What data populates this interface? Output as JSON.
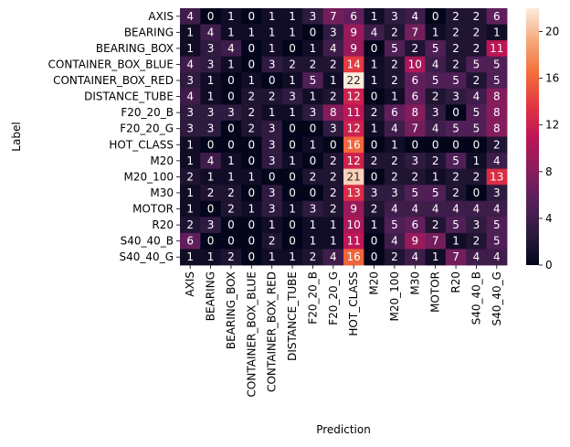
{
  "chart_data": {
    "type": "heatmap",
    "title": "",
    "xlabel": "Prediction",
    "ylabel": "Label",
    "x_categories": [
      "AXIS",
      "BEARING",
      "BEARING_BOX",
      "CONTAINER_BOX_BLUE",
      "CONTAINER_BOX_RED",
      "DISTANCE_TUBE",
      "F20_20_B",
      "F20_20_G",
      "HOT_CLASS",
      "M20",
      "M20_100",
      "M30",
      "MOTOR",
      "R20",
      "S40_40_B",
      "S40_40_G"
    ],
    "y_categories": [
      "AXIS",
      "BEARING",
      "BEARING_BOX",
      "CONTAINER_BOX_BLUE",
      "CONTAINER_BOX_RED",
      "DISTANCE_TUBE",
      "F20_20_B",
      "F20_20_G",
      "HOT_CLASS",
      "M20",
      "M20_100",
      "M30",
      "MOTOR",
      "R20",
      "S40_40_B",
      "S40_40_G"
    ],
    "values": [
      [
        4,
        0,
        1,
        0,
        1,
        1,
        3,
        7,
        6,
        1,
        3,
        4,
        0,
        2,
        2,
        6
      ],
      [
        1,
        4,
        1,
        1,
        1,
        1,
        0,
        3,
        9,
        4,
        2,
        7,
        1,
        2,
        2,
        1
      ],
      [
        1,
        3,
        4,
        0,
        1,
        0,
        1,
        4,
        9,
        0,
        5,
        2,
        5,
        2,
        2,
        11
      ],
      [
        4,
        3,
        1,
        0,
        3,
        2,
        2,
        2,
        14,
        1,
        2,
        10,
        4,
        2,
        5,
        5
      ],
      [
        3,
        1,
        0,
        1,
        0,
        1,
        5,
        1,
        22,
        1,
        2,
        6,
        5,
        5,
        2,
        5
      ],
      [
        4,
        1,
        0,
        2,
        2,
        3,
        1,
        2,
        12,
        0,
        1,
        6,
        2,
        3,
        4,
        8
      ],
      [
        3,
        3,
        3,
        2,
        1,
        1,
        3,
        8,
        11,
        2,
        6,
        8,
        3,
        0,
        5,
        8
      ],
      [
        3,
        3,
        0,
        2,
        3,
        0,
        0,
        3,
        12,
        1,
        4,
        7,
        4,
        5,
        5,
        8
      ],
      [
        1,
        0,
        0,
        0,
        3,
        0,
        1,
        0,
        16,
        0,
        1,
        0,
        0,
        0,
        0,
        2
      ],
      [
        1,
        4,
        1,
        0,
        3,
        1,
        0,
        2,
        12,
        2,
        2,
        3,
        2,
        5,
        1,
        4
      ],
      [
        2,
        1,
        1,
        1,
        0,
        0,
        2,
        2,
        21,
        0,
        2,
        2,
        1,
        2,
        2,
        13
      ],
      [
        1,
        2,
        2,
        0,
        3,
        0,
        0,
        2,
        13,
        3,
        3,
        5,
        5,
        2,
        0,
        3
      ],
      [
        1,
        0,
        2,
        1,
        3,
        1,
        3,
        2,
        9,
        2,
        4,
        4,
        4,
        4,
        4,
        4
      ],
      [
        2,
        3,
        0,
        0,
        1,
        0,
        1,
        1,
        10,
        1,
        5,
        6,
        2,
        5,
        3,
        5
      ],
      [
        6,
        0,
        0,
        0,
        2,
        0,
        1,
        1,
        11,
        0,
        4,
        9,
        7,
        1,
        2,
        5
      ],
      [
        1,
        1,
        2,
        0,
        1,
        1,
        2,
        4,
        16,
        0,
        2,
        4,
        1,
        7,
        4,
        4
      ]
    ],
    "colorbar": {
      "min": 0,
      "max": 22,
      "ticks": [
        0,
        4,
        8,
        12,
        16,
        20
      ],
      "colormap": "rocket"
    },
    "annotations": "cell counts shown in each cell",
    "grid": false,
    "legend": "colorbar-right"
  }
}
